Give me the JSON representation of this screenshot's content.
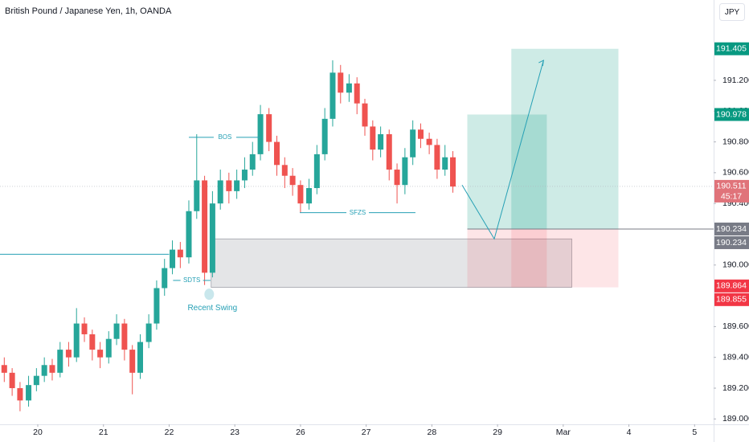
{
  "header": {
    "title": "British Pound / Japanese Yen, 1h, OANDA",
    "currency": "JPY"
  },
  "chart_data": {
    "type": "candlestick",
    "up_color": "#26a69a",
    "down_color": "#ef5350",
    "x": [
      -0.51,
      -0.39,
      -0.27,
      -0.14,
      -0.02,
      0.1,
      0.22,
      0.34,
      0.47,
      0.59,
      0.71,
      0.83,
      0.95,
      1.08,
      1.2,
      1.32,
      1.44,
      1.56,
      1.69,
      1.81,
      1.93,
      2.05,
      2.17,
      2.3,
      2.42,
      2.54,
      2.66,
      2.78,
      2.91,
      3.03,
      3.15,
      3.27,
      3.39,
      3.52,
      3.64,
      3.76,
      3.88,
      4.0,
      4.13,
      4.25,
      4.37,
      4.49,
      4.61,
      4.74,
      4.86,
      4.98,
      5.1,
      5.22,
      5.35,
      5.47,
      5.59,
      5.71,
      5.83,
      5.96,
      6.08,
      6.2,
      6.32
    ],
    "open": [
      189.35,
      189.3,
      189.2,
      189.12,
      189.22,
      189.28,
      189.35,
      189.3,
      189.45,
      189.4,
      189.62,
      189.55,
      189.45,
      189.4,
      189.52,
      189.62,
      189.45,
      189.3,
      189.5,
      189.62,
      189.85,
      189.98,
      190.1,
      190.05,
      190.35,
      190.55,
      189.95,
      190.4,
      190.55,
      190.48,
      190.55,
      190.62,
      190.72,
      190.98,
      190.8,
      190.65,
      190.58,
      190.52,
      190.4,
      190.5,
      190.72,
      190.95,
      191.25,
      191.12,
      191.18,
      191.05,
      190.9,
      190.75,
      190.85,
      190.62,
      190.52,
      190.7,
      190.88,
      190.82,
      190.78,
      190.62,
      190.7
    ],
    "high": [
      189.4,
      189.33,
      189.24,
      189.28,
      189.33,
      189.4,
      189.39,
      189.5,
      189.5,
      189.72,
      189.66,
      189.58,
      189.5,
      189.57,
      189.68,
      189.65,
      189.48,
      189.55,
      189.68,
      189.9,
      190.04,
      190.16,
      190.15,
      190.42,
      190.85,
      190.58,
      190.48,
      190.62,
      190.6,
      190.62,
      190.7,
      190.8,
      191.04,
      191.02,
      190.84,
      190.7,
      190.63,
      190.55,
      190.56,
      190.78,
      191.02,
      191.33,
      191.3,
      191.24,
      191.22,
      191.08,
      190.94,
      190.9,
      190.88,
      190.66,
      190.76,
      190.94,
      190.92,
      190.86,
      190.82,
      190.78,
      190.74
    ],
    "low": [
      189.24,
      189.15,
      189.05,
      189.08,
      189.18,
      189.24,
      189.25,
      189.27,
      189.34,
      189.37,
      189.5,
      189.38,
      189.33,
      189.36,
      189.48,
      189.38,
      189.16,
      189.26,
      189.46,
      189.58,
      189.8,
      189.94,
      189.98,
      190.01,
      190.3,
      189.87,
      189.92,
      190.36,
      190.4,
      190.43,
      190.5,
      190.58,
      190.68,
      190.74,
      190.58,
      190.5,
      190.45,
      190.34,
      190.36,
      190.46,
      190.68,
      190.9,
      191.05,
      191.06,
      190.98,
      190.84,
      190.68,
      190.7,
      190.55,
      190.4,
      190.46,
      190.65,
      190.76,
      190.72,
      190.56,
      190.58,
      190.47
    ],
    "close": [
      189.3,
      189.2,
      189.12,
      189.22,
      189.28,
      189.35,
      189.3,
      189.45,
      189.4,
      189.62,
      189.55,
      189.45,
      189.4,
      189.52,
      189.62,
      189.45,
      189.3,
      189.5,
      189.62,
      189.85,
      189.98,
      190.1,
      190.05,
      190.35,
      190.55,
      189.95,
      190.4,
      190.55,
      190.48,
      190.55,
      190.62,
      190.72,
      190.98,
      190.8,
      190.65,
      190.58,
      190.52,
      190.4,
      190.5,
      190.72,
      190.95,
      191.25,
      191.12,
      191.18,
      191.05,
      190.9,
      190.75,
      190.85,
      190.62,
      190.52,
      190.7,
      190.88,
      190.82,
      190.78,
      190.62,
      190.7,
      190.51
    ],
    "xlim": [
      -0.575,
      10.29
    ],
    "xticks": [
      {
        "value": 0,
        "label": "20"
      },
      {
        "value": 1,
        "label": "21"
      },
      {
        "value": 2,
        "label": "22"
      },
      {
        "value": 3,
        "label": "23"
      },
      {
        "value": 4,
        "label": "26"
      },
      {
        "value": 5,
        "label": "27"
      },
      {
        "value": 6,
        "label": "28"
      },
      {
        "value": 7,
        "label": "29"
      },
      {
        "value": 8,
        "label": "Mar"
      },
      {
        "value": 9,
        "label": "4"
      },
      {
        "value": 10,
        "label": "5"
      }
    ],
    "ylim": [
      188.965,
      191.722
    ],
    "yticks": [
      {
        "value": 191.2,
        "label": "191.200"
      },
      {
        "value": 191.0,
        "label": "191.000"
      },
      {
        "value": 190.8,
        "label": "190.800"
      },
      {
        "value": 190.6,
        "label": "190.600"
      },
      {
        "value": 190.4,
        "label": "190.400"
      },
      {
        "value": 190.0,
        "label": "190.000"
      },
      {
        "value": 189.6,
        "label": "189.600"
      },
      {
        "value": 189.4,
        "label": "189.400"
      },
      {
        "value": 189.2,
        "label": "189.200"
      },
      {
        "value": 189.0,
        "label": "189.000"
      }
    ],
    "price_labels": [
      {
        "value": 191.405,
        "label": "191.405",
        "color": "#089981"
      },
      {
        "value": 190.978,
        "label": "190.978",
        "color": "#089981"
      },
      {
        "value": 190.511,
        "label": "190.511",
        "sublabel": "45:17",
        "color": "#e0737a"
      },
      {
        "value": 190.234,
        "label": "190.234",
        "color": "#787b86"
      },
      {
        "value": 190.234,
        "label": "190.234",
        "color": "#787b86"
      },
      {
        "value": 189.864,
        "label": "189.864",
        "color": "#f23645"
      },
      {
        "value": 189.855,
        "label": "189.855",
        "color": "#f23645"
      }
    ],
    "annotations": [
      {
        "text": "BOS",
        "price": 190.83,
        "x": [
          2.3,
          3.4
        ]
      },
      {
        "text": "SFZS",
        "price": 190.34,
        "x": [
          3.99,
          5.75
        ]
      },
      {
        "text": "SDTS",
        "price": 189.9,
        "x": [
          2.06,
          2.63
        ]
      }
    ],
    "swing": {
      "text": "Recent Swing",
      "x": 2.61,
      "price": 189.81
    },
    "level": {
      "price": 190.07,
      "x": [
        -0.575,
        2.0
      ]
    },
    "zone": {
      "top": 190.17,
      "bottom": 189.855,
      "x": [
        2.64,
        8.13
      ]
    },
    "positions": [
      {
        "entry": 190.234,
        "target": 190.978,
        "stop": 189.855,
        "x": [
          6.54,
          7.75
        ]
      },
      {
        "entry": 190.234,
        "target": 191.405,
        "stop": 189.855,
        "x": [
          7.21,
          8.84
        ]
      }
    ],
    "projection": {
      "x": [
        6.46,
        6.95,
        7.7
      ],
      "price": [
        190.52,
        190.17,
        191.33
      ]
    }
  }
}
